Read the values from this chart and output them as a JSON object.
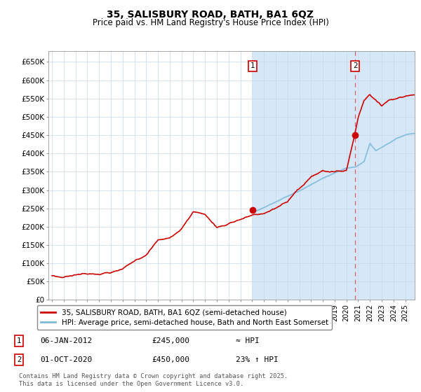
{
  "title": "35, SALISBURY ROAD, BATH, BA1 6QZ",
  "subtitle": "Price paid vs. HM Land Registry's House Price Index (HPI)",
  "title_fontsize": 10,
  "subtitle_fontsize": 8.5,
  "ylabel_ticks": [
    "£0",
    "£50K",
    "£100K",
    "£150K",
    "£200K",
    "£250K",
    "£300K",
    "£350K",
    "£400K",
    "£450K",
    "£500K",
    "£550K",
    "£600K",
    "£650K"
  ],
  "ylim": [
    0,
    680000
  ],
  "xlim_start": 1994.7,
  "xlim_end": 2025.8,
  "hpi_fill_color": "#d6e8f7",
  "hpi_line_color": "#7ab8d9",
  "price_line_color": "#cc0000",
  "plot_bg": "#ffffff",
  "grid_color": "#c8d8e8",
  "sale1_date": 2012.03,
  "sale1_price": 245000,
  "sale1_label": "1",
  "sale2_date": 2020.75,
  "sale2_price": 450000,
  "sale2_label": "2",
  "legend1": "35, SALISBURY ROAD, BATH, BA1 6QZ (semi-detached house)",
  "legend2": "HPI: Average price, semi-detached house, Bath and North East Somerset",
  "ann1_date": "06-JAN-2012",
  "ann1_price": "£245,000",
  "ann1_rel": "≈ HPI",
  "ann2_date": "01-OCT-2020",
  "ann2_price": "£450,000",
  "ann2_rel": "23% ↑ HPI",
  "footer": "Contains HM Land Registry data © Crown copyright and database right 2025.\nThis data is licensed under the Open Government Licence v3.0.",
  "highlight_start": 2012.03,
  "highlight_end": 2025.8
}
